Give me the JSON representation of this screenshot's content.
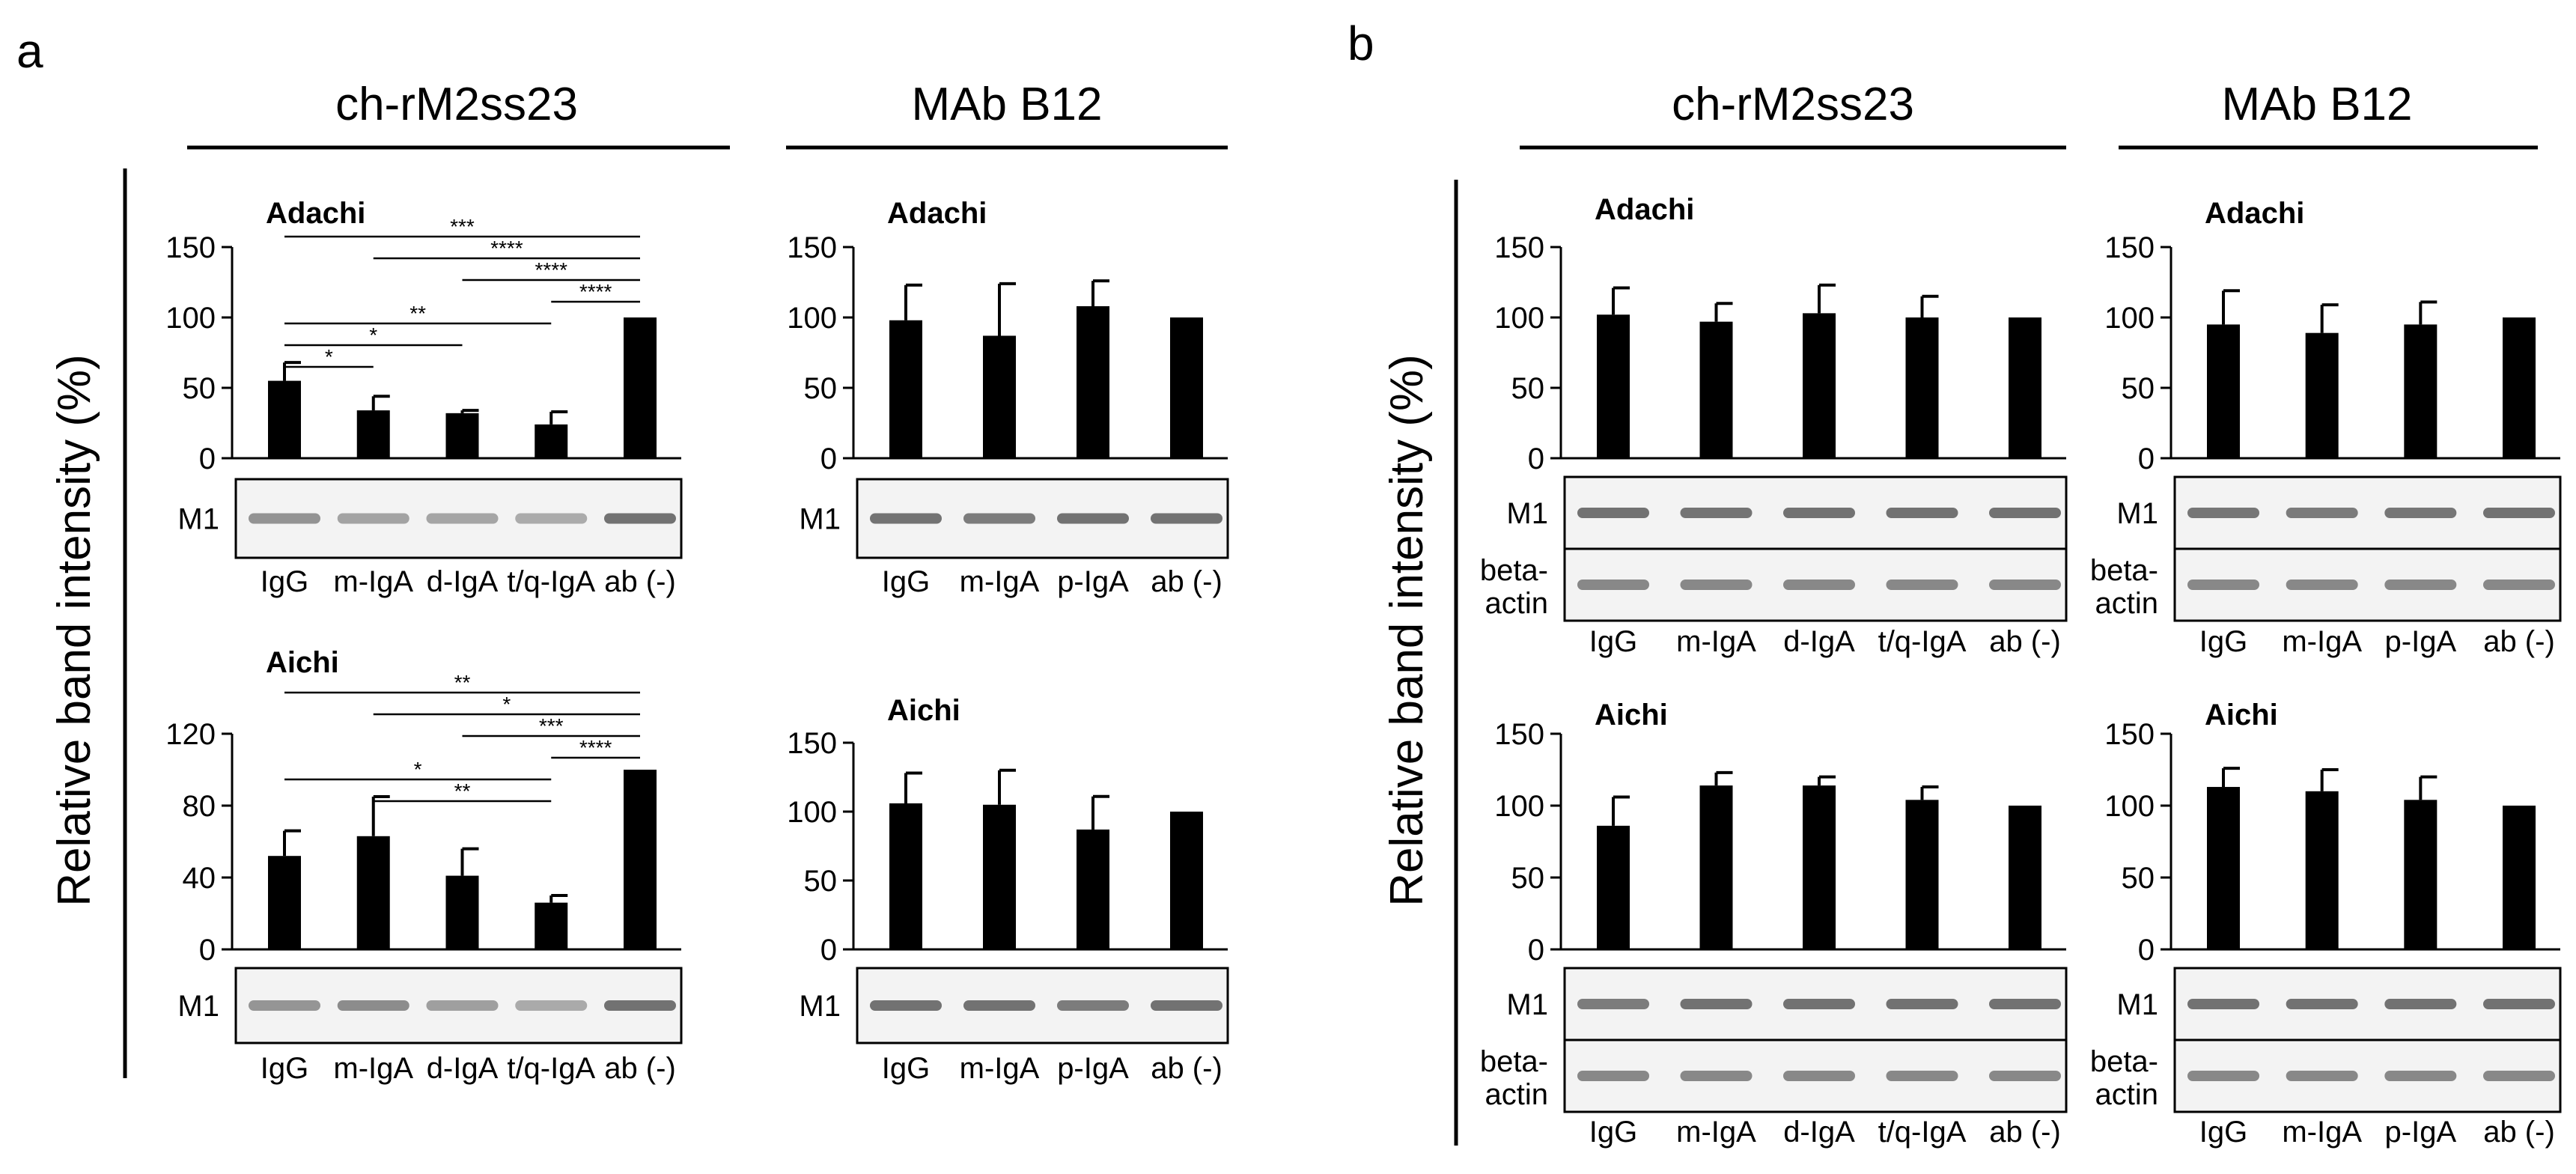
{
  "colors": {
    "bar": "#000000",
    "axis": "#000000",
    "blot_bg": "#f3f3f3",
    "band": "#5a5a5a"
  },
  "panel_a": {
    "letter": "a",
    "ylabel": "Relative band intensity (%)",
    "groups": [
      "ch-rM2ss23",
      "MAb B12"
    ]
  },
  "panel_b": {
    "letter": "b",
    "ylabel": "Relative band intensity (%)",
    "groups": [
      "ch-rM2ss23",
      "MAb B12"
    ]
  },
  "blot_labels": {
    "m1": "M1",
    "beta1": "beta-",
    "beta2": "actin"
  },
  "chart_data": [
    {
      "id": "a-ch-adachi",
      "type": "bar",
      "title": "Adachi",
      "categories": [
        "IgG",
        "m-IgA",
        "d-IgA",
        "t/q-IgA",
        "ab (-)"
      ],
      "values": [
        55,
        34,
        32,
        24,
        100
      ],
      "errors": [
        13,
        10,
        2,
        9,
        1
      ],
      "ylim": [
        0,
        150
      ],
      "yticks": [
        0,
        50,
        100,
        150
      ],
      "significance": [
        {
          "from": 0,
          "to": 4,
          "label": "***"
        },
        {
          "from": 1,
          "to": 4,
          "label": "****"
        },
        {
          "from": 2,
          "to": 4,
          "label": "****"
        },
        {
          "from": 3,
          "to": 4,
          "label": "****"
        },
        {
          "from": 0,
          "to": 3,
          "label": "**"
        },
        {
          "from": 0,
          "to": 2,
          "label": "*"
        },
        {
          "from": 0,
          "to": 1,
          "label": "*"
        }
      ]
    },
    {
      "id": "a-mab-adachi",
      "type": "bar",
      "title": "Adachi",
      "categories": [
        "IgG",
        "m-IgA",
        "p-IgA",
        "ab (-)"
      ],
      "values": [
        98,
        87,
        108,
        100
      ],
      "errors": [
        25,
        37,
        18,
        1
      ],
      "ylim": [
        0,
        150
      ],
      "yticks": [
        0,
        50,
        100,
        150
      ],
      "significance": []
    },
    {
      "id": "a-ch-aichi",
      "type": "bar",
      "title": "Aichi",
      "categories": [
        "IgG",
        "m-IgA",
        "d-IgA",
        "t/q-IgA",
        "ab (-)"
      ],
      "values": [
        52,
        63,
        41,
        26,
        100
      ],
      "errors": [
        14,
        22,
        15,
        4,
        1
      ],
      "ylim": [
        0,
        120
      ],
      "yticks": [
        0,
        40,
        80,
        120
      ],
      "significance": [
        {
          "from": 0,
          "to": 4,
          "label": "**"
        },
        {
          "from": 1,
          "to": 4,
          "label": "*"
        },
        {
          "from": 2,
          "to": 4,
          "label": "***"
        },
        {
          "from": 3,
          "to": 4,
          "label": "****"
        },
        {
          "from": 0,
          "to": 3,
          "label": "*"
        },
        {
          "from": 1,
          "to": 3,
          "label": "**"
        }
      ]
    },
    {
      "id": "a-mab-aichi",
      "type": "bar",
      "title": "Aichi",
      "categories": [
        "IgG",
        "m-IgA",
        "p-IgA",
        "ab (-)"
      ],
      "values": [
        106,
        105,
        87,
        100
      ],
      "errors": [
        22,
        25,
        24,
        1
      ],
      "ylim": [
        0,
        150
      ],
      "yticks": [
        0,
        50,
        100,
        150
      ],
      "significance": []
    },
    {
      "id": "b-ch-adachi",
      "type": "bar",
      "title": "Adachi",
      "categories": [
        "IgG",
        "m-IgA",
        "d-IgA",
        "t/q-IgA",
        "ab (-)"
      ],
      "values": [
        102,
        97,
        103,
        100,
        100
      ],
      "errors": [
        19,
        13,
        20,
        15,
        1
      ],
      "ylim": [
        0,
        150
      ],
      "yticks": [
        0,
        50,
        100,
        150
      ],
      "significance": []
    },
    {
      "id": "b-mab-adachi",
      "type": "bar",
      "title": "Adachi",
      "categories": [
        "IgG",
        "m-IgA",
        "p-IgA",
        "ab (-)"
      ],
      "values": [
        95,
        89,
        95,
        100
      ],
      "errors": [
        24,
        20,
        16,
        1
      ],
      "ylim": [
        0,
        150
      ],
      "yticks": [
        0,
        50,
        100,
        150
      ],
      "significance": []
    },
    {
      "id": "b-ch-aichi",
      "type": "bar",
      "title": "Aichi",
      "categories": [
        "IgG",
        "m-IgA",
        "d-IgA",
        "t/q-IgA",
        "ab (-)"
      ],
      "values": [
        86,
        114,
        114,
        104,
        100
      ],
      "errors": [
        20,
        9,
        6,
        9,
        1
      ],
      "ylim": [
        0,
        150
      ],
      "yticks": [
        0,
        50,
        100,
        150
      ],
      "significance": []
    },
    {
      "id": "b-mab-aichi",
      "type": "bar",
      "title": "Aichi",
      "categories": [
        "IgG",
        "m-IgA",
        "p-IgA",
        "ab (-)"
      ],
      "values": [
        113,
        110,
        104,
        100
      ],
      "errors": [
        13,
        15,
        16,
        1
      ],
      "ylim": [
        0,
        150
      ],
      "yticks": [
        0,
        50,
        100,
        150
      ],
      "significance": []
    }
  ]
}
